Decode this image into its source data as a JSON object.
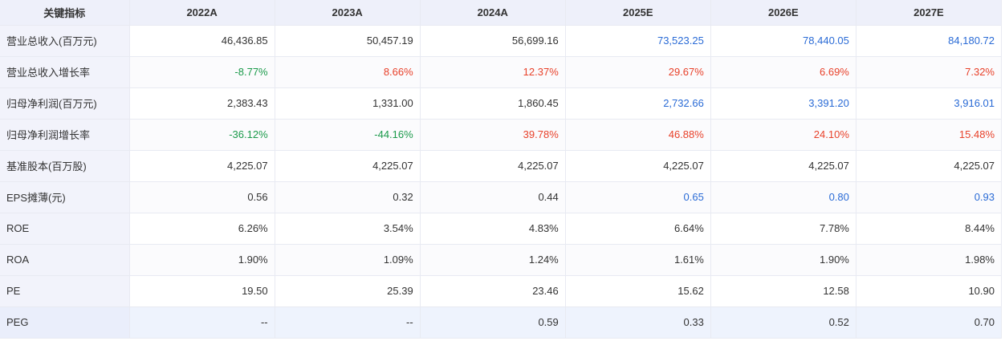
{
  "table": {
    "header": [
      "关键指标",
      "2022A",
      "2023A",
      "2024A",
      "2025E",
      "2026E",
      "2027E"
    ],
    "estimate_columns": [
      3,
      4,
      5
    ],
    "rows": [
      {
        "label": "营业总收入(百万元)",
        "kind": "value",
        "values": [
          "46,436.85",
          "50,457.19",
          "56,699.16",
          "73,523.25",
          "78,440.05",
          "84,180.72"
        ]
      },
      {
        "label": "营业总收入增长率",
        "kind": "growth",
        "values": [
          "-8.77%",
          "8.66%",
          "12.37%",
          "29.67%",
          "6.69%",
          "7.32%"
        ]
      },
      {
        "label": "归母净利润(百万元)",
        "kind": "value",
        "values": [
          "2,383.43",
          "1,331.00",
          "1,860.45",
          "2,732.66",
          "3,391.20",
          "3,916.01"
        ]
      },
      {
        "label": "归母净利润增长率",
        "kind": "growth",
        "values": [
          "-36.12%",
          "-44.16%",
          "39.78%",
          "46.88%",
          "24.10%",
          "15.48%"
        ]
      },
      {
        "label": "基准股本(百万股)",
        "kind": "plain",
        "values": [
          "4,225.07",
          "4,225.07",
          "4,225.07",
          "4,225.07",
          "4,225.07",
          "4,225.07"
        ]
      },
      {
        "label": "EPS摊薄(元)",
        "kind": "value",
        "values": [
          "0.56",
          "0.32",
          "0.44",
          "0.65",
          "0.80",
          "0.93"
        ]
      },
      {
        "label": "ROE",
        "kind": "plain",
        "values": [
          "6.26%",
          "3.54%",
          "4.83%",
          "6.64%",
          "7.78%",
          "8.44%"
        ]
      },
      {
        "label": "ROA",
        "kind": "plain",
        "values": [
          "1.90%",
          "1.09%",
          "1.24%",
          "1.61%",
          "1.90%",
          "1.98%"
        ]
      },
      {
        "label": "PE",
        "kind": "plain",
        "values": [
          "19.50",
          "25.39",
          "23.46",
          "15.62",
          "12.58",
          "10.90"
        ]
      },
      {
        "label": "PEG",
        "kind": "plain",
        "values": [
          "--",
          "--",
          "0.59",
          "0.33",
          "0.52",
          "0.70"
        ]
      }
    ]
  },
  "colors": {
    "header_bg": "#eef0fa",
    "label_bg": "#f2f3fb",
    "growth_up": "#e8412a",
    "growth_down": "#1a9a4a",
    "estimate_value": "#2a6bd6",
    "text": "#333333",
    "last_row_bg": "#eef3fd"
  }
}
